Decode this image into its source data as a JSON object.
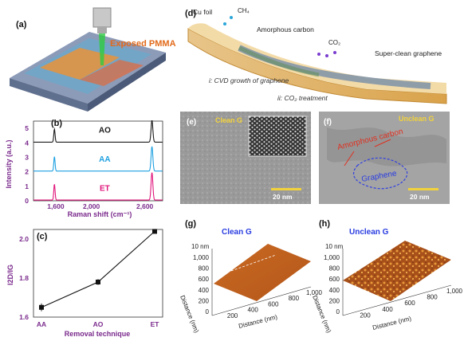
{
  "panels": {
    "a": {
      "label": "(a)",
      "annotation": "Exposed PMMA"
    },
    "b": {
      "label": "(b)",
      "ylabel": "Intensity (a.u.)",
      "xlabel": "Raman shift (cm⁻¹)",
      "yticks": [
        "0",
        "1",
        "2",
        "3",
        "4",
        "5"
      ],
      "xticks": [
        "1,600",
        "2,000",
        "2,600"
      ],
      "series_labels": [
        "AO",
        "AA",
        "ET"
      ]
    },
    "c": {
      "label": "(c)",
      "ylabel": "I2D/IG",
      "xlabel": "Removal technique",
      "yticks": [
        "1.6",
        "1.8",
        "2.0"
      ],
      "categories": [
        "AA",
        "AO",
        "ET"
      ]
    },
    "d": {
      "label": "(d)",
      "cu_foil": "Cu foil",
      "ch4": "CH₄",
      "amorphous": "Amorphous carbon",
      "co2": "CO₂",
      "super_clean": "Super-clean graphene",
      "step1": "i: CVD growth of graphene",
      "step2": "ii: CO₂ treatment"
    },
    "e": {
      "label": "(e)",
      "title": "Clean G",
      "scale": "20 nm"
    },
    "f": {
      "label": "(f)",
      "title": "Unclean G",
      "amorphous": "Amorphous carbon",
      "graphene": "Graphene",
      "scale": "20 nm"
    },
    "g": {
      "label": "(g)",
      "title": "Clean G",
      "zlabel": "10 nm",
      "ylabel": "Distance (nm)",
      "xlabel": "Distance (nm)",
      "yticks": [
        "1,000",
        "800",
        "600",
        "400",
        "200",
        "0"
      ],
      "xticks": [
        "200",
        "400",
        "600",
        "800",
        "1,000"
      ]
    },
    "h": {
      "label": "(h)",
      "title": "Unclean G",
      "zlabel": "10 nm",
      "ylabel": "Distance (nm)",
      "xlabel": "Distance (nm)",
      "yticks": [
        "1,000",
        "800",
        "600",
        "400",
        "200",
        "0"
      ],
      "xticks": [
        "200",
        "400",
        "600",
        "800",
        "1,000"
      ]
    }
  },
  "colors": {
    "AO": "#1a1a1a",
    "AA": "#1ea0e0",
    "ET": "#e0147a",
    "purple": "#7a2a8c",
    "title_blue": "#2a3de0",
    "yellow": "#f2d23c",
    "red": "#e03020"
  },
  "chart_data": [
    {
      "type": "line",
      "panel": "b",
      "xlabel": "Raman shift (cm⁻¹)",
      "ylabel": "Intensity (a.u.)",
      "ylim": [
        0,
        5.5
      ],
      "xlim": [
        1350,
        2800
      ],
      "series": [
        {
          "name": "AO",
          "offset": 4,
          "g_peak": [
            1585,
            0.9
          ],
          "d2_peak": [
            2680,
            1.5
          ]
        },
        {
          "name": "AA",
          "offset": 2,
          "g_peak": [
            1585,
            1.0
          ],
          "d2_peak": [
            2680,
            1.7
          ]
        },
        {
          "name": "ET",
          "offset": 0,
          "g_peak": [
            1585,
            1.1
          ],
          "d2_peak": [
            2680,
            1.9
          ]
        }
      ]
    },
    {
      "type": "line",
      "panel": "c",
      "xlabel": "Removal technique",
      "ylabel": "I2D/IG",
      "ylim": [
        1.6,
        2.05
      ],
      "categories": [
        "AA",
        "AO",
        "ET"
      ],
      "values": [
        1.65,
        1.78,
        2.04
      ],
      "errors": [
        0.02,
        0.015,
        0.01
      ]
    }
  ]
}
